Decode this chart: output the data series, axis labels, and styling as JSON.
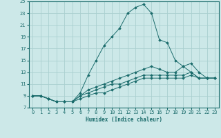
{
  "title": "",
  "xlabel": "Humidex (Indice chaleur)",
  "ylabel": "",
  "bg_color": "#cce8e8",
  "grid_color": "#aad0d0",
  "line_color": "#1a6b6b",
  "xlim": [
    -0.5,
    23.5
  ],
  "ylim": [
    7,
    25
  ],
  "xticks": [
    0,
    1,
    2,
    3,
    4,
    5,
    6,
    7,
    8,
    9,
    10,
    11,
    12,
    13,
    14,
    15,
    16,
    17,
    18,
    19,
    20,
    21,
    22,
    23
  ],
  "yticks": [
    7,
    9,
    11,
    13,
    15,
    17,
    19,
    21,
    23,
    25
  ],
  "series": [
    {
      "x": [
        0,
        1,
        2,
        3,
        4,
        5,
        6,
        7,
        8,
        9,
        10,
        11,
        12,
        13,
        14,
        15,
        16,
        17,
        18,
        19,
        20,
        21,
        22,
        23
      ],
      "y": [
        9,
        9,
        8.5,
        8,
        8,
        8,
        9.5,
        12.5,
        15,
        17.5,
        19,
        20.5,
        23,
        24,
        24.5,
        23,
        18.5,
        18,
        15,
        14,
        13,
        12,
        12,
        12
      ]
    },
    {
      "x": [
        0,
        1,
        2,
        3,
        4,
        5,
        6,
        7,
        8,
        9,
        10,
        11,
        12,
        13,
        14,
        15,
        16,
        17,
        18,
        19,
        20,
        21,
        22,
        23
      ],
      "y": [
        9,
        9,
        8.5,
        8,
        8,
        8,
        9,
        10,
        10.5,
        11,
        11.5,
        12,
        12.5,
        13,
        13.5,
        14,
        13.5,
        13,
        13,
        14,
        14.5,
        13,
        12,
        12
      ]
    },
    {
      "x": [
        0,
        1,
        2,
        3,
        4,
        5,
        6,
        7,
        8,
        9,
        10,
        11,
        12,
        13,
        14,
        15,
        16,
        17,
        18,
        19,
        20,
        21,
        22,
        23
      ],
      "y": [
        9,
        9,
        8.5,
        8,
        8,
        8,
        9,
        9.5,
        10,
        10.5,
        11,
        11,
        11.5,
        12,
        12.5,
        12.5,
        12.5,
        12.5,
        12.5,
        12.5,
        13,
        12,
        12,
        12
      ]
    },
    {
      "x": [
        0,
        1,
        2,
        3,
        4,
        5,
        6,
        7,
        8,
        9,
        10,
        11,
        12,
        13,
        14,
        15,
        16,
        17,
        18,
        19,
        20,
        21,
        22,
        23
      ],
      "y": [
        9,
        9,
        8.5,
        8,
        8,
        8,
        8.5,
        9,
        9.5,
        9.5,
        10,
        10.5,
        11,
        11.5,
        12,
        12,
        12,
        12,
        12,
        12,
        12.5,
        12,
        12,
        12
      ]
    }
  ]
}
